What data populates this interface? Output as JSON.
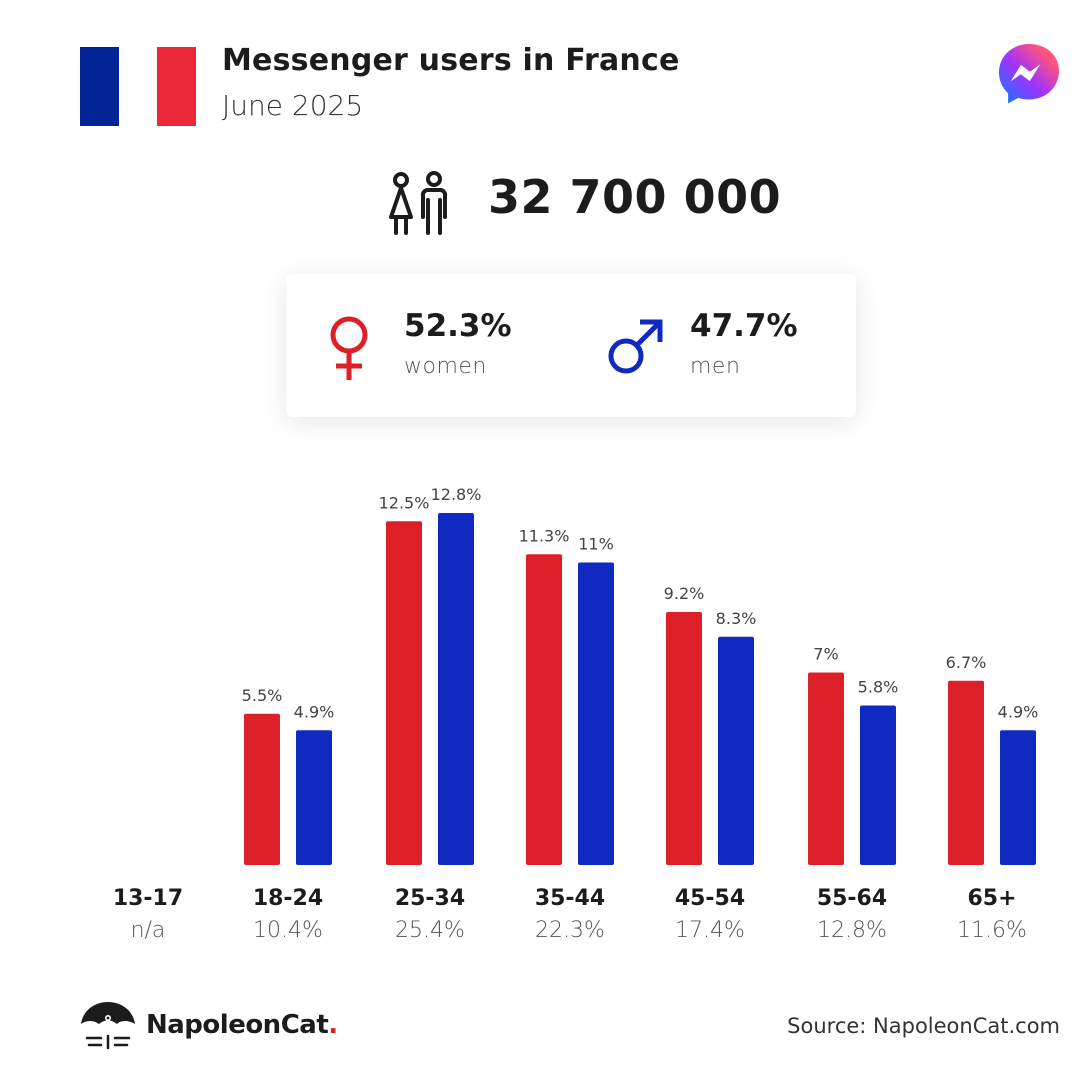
{
  "header": {
    "title": "Messenger users in France",
    "subtitle": "June 2025"
  },
  "flag": {
    "colors": [
      "#002395",
      "#ffffff",
      "#ED2939"
    ]
  },
  "brand_icon": "messenger-icon",
  "total": {
    "icon": "people-icon",
    "value": "32 700 000"
  },
  "gender": {
    "women": {
      "icon": "female-symbol-icon",
      "pct": "52.3%",
      "label": "women",
      "color": "#dd2028"
    },
    "men": {
      "icon": "male-symbol-icon",
      "pct": "47.7%",
      "label": "men",
      "color": "#1029c0"
    }
  },
  "chart_data": {
    "type": "bar",
    "categories": [
      "13-17",
      "18-24",
      "25-34",
      "35-44",
      "45-54",
      "55-64",
      "65+"
    ],
    "category_shares": [
      "n/a",
      "10.4%",
      "25.4%",
      "22.3%",
      "17.4%",
      "12.8%",
      "11.6%"
    ],
    "series": [
      {
        "color": "#dd2028",
        "values": [
          null,
          5.5,
          12.5,
          11.3,
          9.2,
          7,
          6.7
        ],
        "labels": [
          "",
          "5.5%",
          "12.5%",
          "11.3%",
          "9.2%",
          "7%",
          "6.7%"
        ]
      },
      {
        "color": "#1029c0",
        "values": [
          null,
          4.9,
          12.8,
          11,
          8.3,
          5.8,
          4.9
        ],
        "labels": [
          "",
          "4.9%",
          "12.8%",
          "11%",
          "8.3%",
          "5.8%",
          "4.9%"
        ]
      }
    ],
    "ylim": [
      0,
      12.8
    ],
    "grid": false
  },
  "footer": {
    "logo_icon": "napoleoncat-logo-icon",
    "logo_text": "NapoleonCat",
    "logo_dot": ".",
    "source": "Source: NapoleonCat.com"
  }
}
